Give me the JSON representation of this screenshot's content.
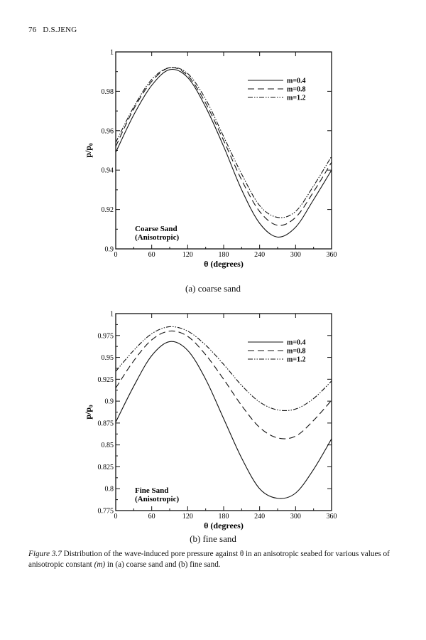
{
  "header": {
    "page_number": "76",
    "author": "D.S.JENG"
  },
  "subcaptions": {
    "a": "(a) coarse sand",
    "b": "(b) fine sand"
  },
  "caption": {
    "label": "Figure 3.7",
    "text": " Distribution of the wave-induced pore pressure against θ in an anisotropic seabed for various values of anisotropic constant ",
    "var": "(m)",
    "text2": " in (a) coarse sand and (b) fine sand."
  },
  "chart_data": [
    {
      "type": "line",
      "title": "",
      "annotation": [
        "Coarse Sand",
        "(Anisotropic)"
      ],
      "xlabel": "θ (degrees)",
      "ylabel": "p/p₀",
      "xlim": [
        0,
        360
      ],
      "ylim": [
        0.9,
        1.0
      ],
      "xticks": [
        0,
        60,
        120,
        180,
        240,
        300,
        360
      ],
      "yticks": [
        0.9,
        0.92,
        0.94,
        0.96,
        0.98,
        1
      ],
      "ytick_labels": [
        "0.9",
        "0.92",
        "0.94",
        "0.96",
        "0.98",
        "1"
      ],
      "grid": false,
      "legend_position": "top-right",
      "x": [
        0,
        30,
        60,
        90,
        120,
        150,
        180,
        210,
        240,
        270,
        300,
        330,
        360
      ],
      "series": [
        {
          "name": "m=0.4",
          "style": "solid",
          "values": [
            0.949,
            0.968,
            0.983,
            0.991,
            0.987,
            0.972,
            0.952,
            0.93,
            0.913,
            0.906,
            0.911,
            0.925,
            0.94
          ]
        },
        {
          "name": "m=0.8",
          "style": "dashed",
          "values": [
            0.952,
            0.971,
            0.985,
            0.992,
            0.988,
            0.974,
            0.955,
            0.935,
            0.919,
            0.912,
            0.916,
            0.929,
            0.944
          ]
        },
        {
          "name": "m=1.2",
          "style": "dash-dot-dot",
          "values": [
            0.954,
            0.972,
            0.986,
            0.992,
            0.989,
            0.976,
            0.957,
            0.938,
            0.922,
            0.916,
            0.919,
            0.932,
            0.947
          ]
        }
      ]
    },
    {
      "type": "line",
      "title": "",
      "annotation": [
        "Fine Sand",
        "(Anisotropic)"
      ],
      "xlabel": "θ (degrees)",
      "ylabel": "p/p₀",
      "xlim": [
        0,
        360
      ],
      "ylim": [
        0.775,
        1.0
      ],
      "xticks": [
        0,
        60,
        120,
        180,
        240,
        300,
        360
      ],
      "yticks": [
        0.775,
        0.8,
        0.825,
        0.85,
        0.875,
        0.9,
        0.925,
        0.95,
        0.975,
        1
      ],
      "ytick_labels": [
        "0.775",
        "0.8",
        "0.825",
        "0.85",
        "0.875",
        "0.9",
        "0.925",
        "0.95",
        "0.975",
        "1"
      ],
      "grid": false,
      "legend_position": "top-right",
      "x": [
        0,
        30,
        60,
        90,
        120,
        150,
        180,
        210,
        240,
        270,
        300,
        330,
        360
      ],
      "series": [
        {
          "name": "m=0.4",
          "style": "solid",
          "values": [
            0.876,
            0.917,
            0.952,
            0.968,
            0.958,
            0.925,
            0.88,
            0.835,
            0.8,
            0.789,
            0.795,
            0.822,
            0.857
          ]
        },
        {
          "name": "m=0.8",
          "style": "dashed",
          "values": [
            0.915,
            0.946,
            0.97,
            0.98,
            0.974,
            0.953,
            0.925,
            0.895,
            0.87,
            0.858,
            0.86,
            0.878,
            0.901
          ]
        },
        {
          "name": "m=1.2",
          "style": "dash-dot-dot",
          "values": [
            0.934,
            0.958,
            0.977,
            0.985,
            0.98,
            0.964,
            0.942,
            0.918,
            0.899,
            0.89,
            0.891,
            0.903,
            0.923
          ]
        }
      ]
    }
  ]
}
